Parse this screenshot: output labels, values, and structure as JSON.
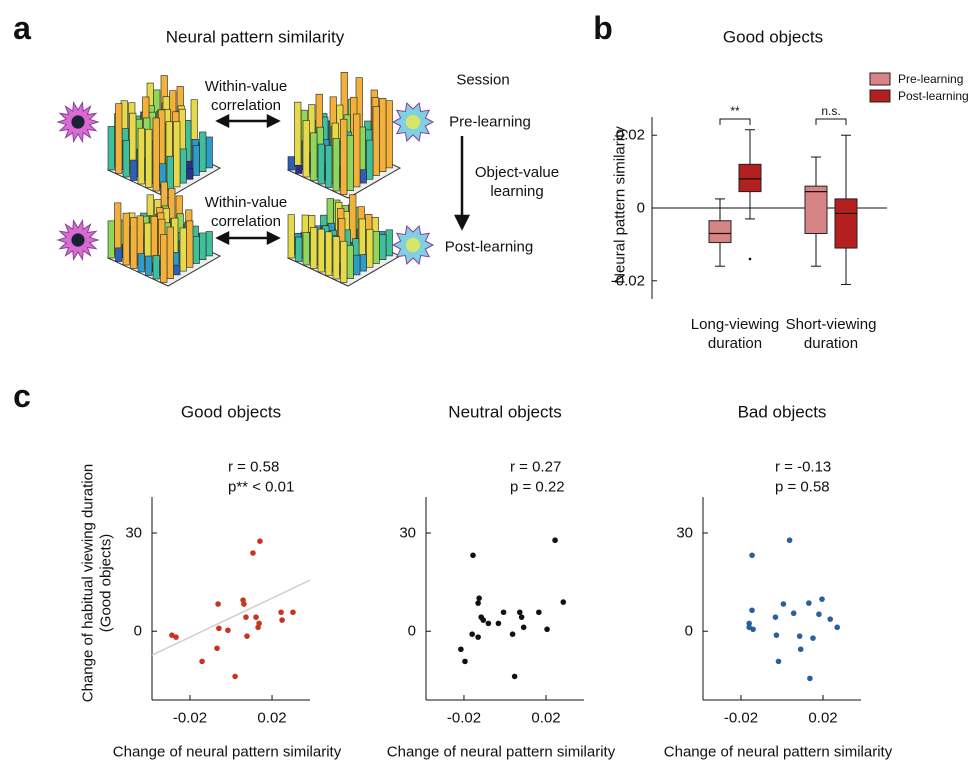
{
  "panel_labels": [
    "a",
    "b",
    "c"
  ],
  "panel_a": {
    "title": "Neural pattern similarity",
    "correlation_labels": [
      "Within-value correlation",
      "Within-value correlation"
    ],
    "session_label": "Session",
    "sessions": [
      "Pre-learning",
      "Post-learning"
    ],
    "learning_label": "Object-value learning"
  },
  "chart_data": [
    {
      "type": "box",
      "title": "Good objects",
      "ylabel": "Neural pattern similarity",
      "categories": [
        "Long-viewing duration",
        "Short-viewing duration"
      ],
      "ylim": [
        -0.025,
        0.025
      ],
      "yticks": [
        -0.02,
        0,
        0.02
      ],
      "annotations": [
        "**",
        "n.s."
      ],
      "series": [
        {
          "name": "Pre-learning",
          "color": "#d98484",
          "stats": [
            {
              "whislo": -0.016,
              "q1": -0.0095,
              "med": -0.007,
              "q3": -0.0035,
              "whishi": 0.0025,
              "fliers": []
            },
            {
              "whislo": -0.016,
              "q1": -0.007,
              "med": 0.0045,
              "q3": 0.006,
              "whishi": 0.014,
              "fliers": []
            }
          ]
        },
        {
          "name": "Post-learning",
          "color": "#b3201e",
          "stats": [
            {
              "whislo": -0.003,
              "q1": 0.0045,
              "med": 0.008,
              "q3": 0.012,
              "whishi": 0.0215,
              "fliers": [
                -0.014
              ]
            },
            {
              "whislo": -0.021,
              "q1": -0.011,
              "med": -0.0015,
              "q3": 0.0025,
              "whishi": 0.02,
              "fliers": []
            }
          ]
        }
      ]
    },
    {
      "type": "scatter",
      "title": "Good objects",
      "xlabel": "Change of neural pattern similarity",
      "ylabel": [
        "Change of habitual viewing duration",
        "(Good objects)"
      ],
      "annotations": [
        "r = 0.58",
        "p** < 0.01"
      ],
      "color": "#c8341f",
      "xlim": [
        -0.0385,
        0.0385
      ],
      "ylim": [
        -21,
        41
      ],
      "xticks": [
        -0.02,
        0.02
      ],
      "yticks": [
        0,
        30
      ],
      "x": [
        -0.0288,
        -0.0268,
        -0.0141,
        -0.0068,
        -0.0063,
        -0.0059,
        -0.0015,
        0.002,
        0.0059,
        0.0063,
        0.0073,
        0.0078,
        0.0107,
        0.0122,
        0.0132,
        0.0141,
        0.0137,
        0.0244,
        0.0249,
        0.0302
      ],
      "y": [
        -1.2,
        -1.8,
        -9.2,
        -5.2,
        8.3,
        0.9,
        0.3,
        -13.8,
        9.5,
        8.3,
        4.3,
        -1.5,
        23.9,
        4.3,
        1.2,
        27.5,
        2.4,
        5.8,
        3.4,
        5.8
      ],
      "fit_line": {
        "color": "#d0d0d0",
        "x": [
          -0.0385,
          0.0385
        ],
        "y": [
          -7.3,
          15.6
        ]
      }
    },
    {
      "type": "scatter",
      "title": "Neutral objects",
      "xlabel": "Change of neural pattern similarity",
      "annotations": [
        "r = 0.27",
        "p = 0.22"
      ],
      "color": "#111111",
      "xlim": [
        -0.0385,
        0.0385
      ],
      "ylim": [
        -21,
        41
      ],
      "xticks": [
        -0.02,
        0.02
      ],
      "yticks": [
        0,
        30
      ],
      "x": [
        -0.0215,
        -0.0195,
        -0.016,
        -0.0156,
        -0.0131,
        -0.0131,
        -0.0126,
        -0.0116,
        -0.0106,
        -0.0081,
        -0.0032,
        -0.0007,
        0.0037,
        0.0047,
        0.0072,
        0.0081,
        0.0091,
        0.0165,
        0.0205,
        0.0244,
        0.0284
      ],
      "y": [
        -5.5,
        -9.2,
        -0.9,
        23.2,
        -1.8,
        8.6,
        10.1,
        4.3,
        3.4,
        2.4,
        2.4,
        5.8,
        -0.9,
        -13.8,
        5.8,
        4.3,
        1.2,
        5.8,
        0.6,
        27.8,
        8.9
      ]
    },
    {
      "type": "scatter",
      "title": "Bad objects",
      "xlabel": "Change of neural pattern similarity",
      "annotations": [
        "r = -0.13",
        "p = 0.58"
      ],
      "color": "#2a5f9e",
      "xlim": [
        -0.0385,
        0.0385
      ],
      "ylim": [
        -21,
        41
      ],
      "xticks": [
        -0.02,
        0.02
      ],
      "yticks": [
        0,
        30
      ],
      "x": [
        -0.016,
        -0.0146,
        -0.016,
        -0.0146,
        -0.0141,
        -0.0032,
        -0.0027,
        -0.0017,
        0.0007,
        0.0037,
        0.0057,
        0.0086,
        0.0091,
        0.0131,
        0.0136,
        0.0151,
        0.018,
        0.0195,
        0.0235,
        0.0269
      ],
      "y": [
        2.4,
        23.2,
        1.2,
        6.4,
        0.6,
        4.3,
        -1.2,
        -9.2,
        8.3,
        27.8,
        5.5,
        -1.5,
        -5.5,
        8.6,
        -14.4,
        -2.1,
        5.2,
        9.8,
        3.7,
        1.2
      ]
    }
  ]
}
